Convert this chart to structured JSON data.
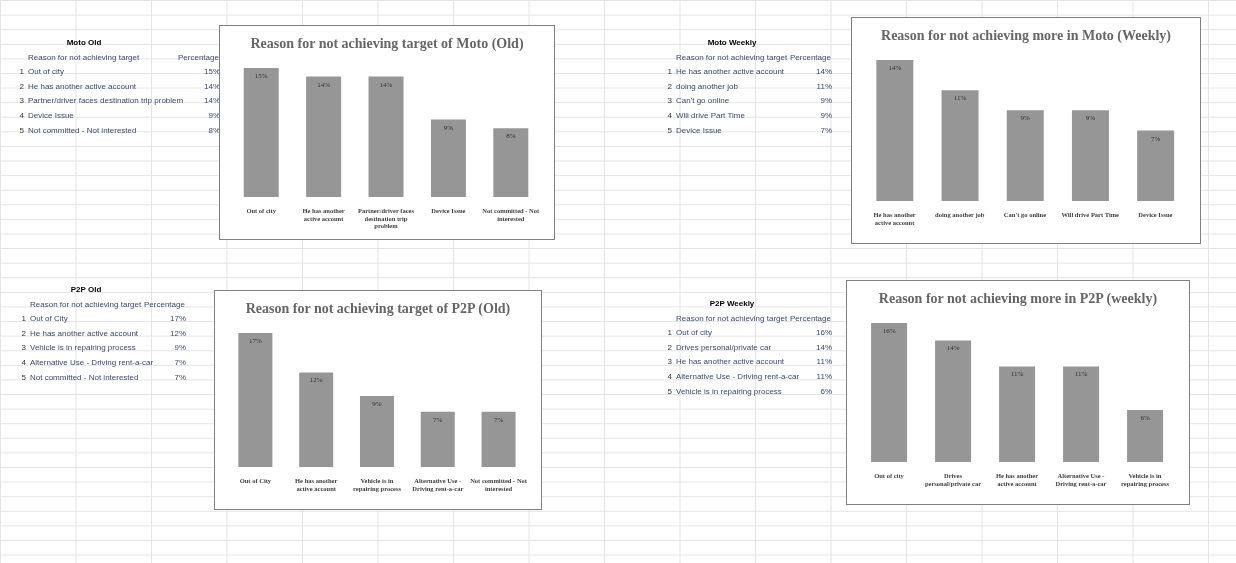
{
  "chart_data": [
    {
      "type": "bar",
      "title": "Reason for not achieving target of Moto (Old)",
      "categories": [
        "Out of city",
        "He has another active account",
        "Partner/driver faces destination trip problem",
        "Device Issue",
        "Not committed - Not interested"
      ],
      "values": [
        15,
        14,
        14,
        9,
        8
      ],
      "value_labels": [
        "15%",
        "14%",
        "14%",
        "9%",
        "8%"
      ],
      "color": "#969696",
      "annotations": [
        "Moto Old",
        "Reason for not achieving target",
        "Percentage",
        "1",
        "2",
        "3",
        "4",
        "5"
      ]
    },
    {
      "type": "bar",
      "title": "Reason for not achieving more in Moto (Weekly)",
      "categories": [
        "He has another active account",
        "doing another job",
        "Can't go online",
        "Will drive Part Time",
        "Device Issue"
      ],
      "values": [
        14,
        11,
        9,
        9,
        7
      ],
      "value_labels": [
        "14%",
        "11%",
        "9%",
        "9%",
        "7%"
      ],
      "color": "#969696",
      "annotations": [
        "Moto Weekly",
        "Reason for not achieving target",
        "Percentage",
        "1",
        "2",
        "3",
        "4",
        "5"
      ]
    },
    {
      "type": "bar",
      "title": "Reason for not achieving target of P2P (Old)",
      "categories": [
        "Out of City",
        "He has another active account",
        "Vehicle is in repairing process",
        "Alternative Use - Driving rent-a-car",
        "Not committed - Not interested"
      ],
      "values": [
        17,
        12,
        9,
        7,
        7
      ],
      "value_labels": [
        "17%",
        "12%",
        "9%",
        "7%",
        "7%"
      ],
      "color": "#969696",
      "annotations": [
        "P2P Old",
        "Reason for not achieving target",
        "Percentage",
        "1",
        "2",
        "3",
        "4",
        "5"
      ]
    },
    {
      "type": "bar",
      "title": "Reason for not achieving more in P2P (weekly)",
      "categories": [
        "Out of city",
        "Drives personal/private car",
        "He has another active account",
        "Alternative Use - Driving rent-a-car",
        "Vehicle is in repairing process"
      ],
      "values": [
        16,
        14,
        11,
        11,
        6
      ],
      "value_labels": [
        "16%",
        "14%",
        "11%",
        "11%",
        "6%"
      ],
      "color": "#969696",
      "annotations": [
        "P2P Weekly",
        "Reason for not achieving target",
        "Percentage",
        "1",
        "2",
        "3",
        "4",
        "5"
      ]
    }
  ]
}
